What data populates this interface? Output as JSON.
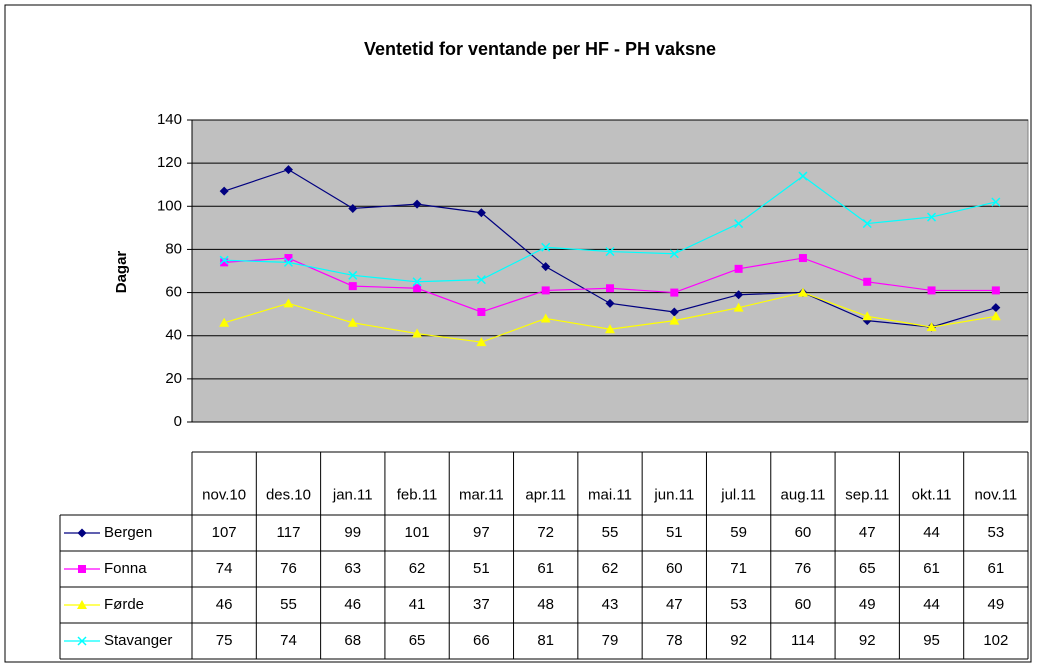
{
  "chart_data": {
    "type": "line",
    "title": "Ventetid for ventande per HF - PH vaksne",
    "y_label": "Dagar",
    "categories": [
      "nov.10",
      "des.10",
      "jan.11",
      "feb.11",
      "mar.11",
      "apr.11",
      "mai.11",
      "jun.11",
      "jul.11",
      "aug.11",
      "sep.11",
      "okt.11",
      "nov.11"
    ],
    "series": [
      {
        "name": "Bergen",
        "color": "#000080",
        "marker": "diamond",
        "values": [
          107,
          117,
          99,
          101,
          97,
          72,
          55,
          51,
          59,
          60,
          47,
          44,
          53
        ]
      },
      {
        "name": "Fonna",
        "color": "#ff00ff",
        "marker": "square",
        "values": [
          74,
          76,
          63,
          62,
          51,
          61,
          62,
          60,
          71,
          76,
          65,
          61,
          61
        ]
      },
      {
        "name": "Førde",
        "color": "#ffff00",
        "marker": "triangle",
        "values": [
          46,
          55,
          46,
          41,
          37,
          48,
          43,
          47,
          53,
          60,
          49,
          44,
          49
        ]
      },
      {
        "name": "Stavanger",
        "color": "#00ffff",
        "marker": "x",
        "values": [
          75,
          74,
          68,
          65,
          66,
          81,
          79,
          78,
          92,
          114,
          92,
          95,
          102
        ]
      }
    ],
    "ylim": [
      0,
      140
    ],
    "yticks": [
      0,
      20,
      40,
      60,
      80,
      100,
      120,
      140
    ],
    "grid": true,
    "plot_background": "#c0c0c0"
  }
}
